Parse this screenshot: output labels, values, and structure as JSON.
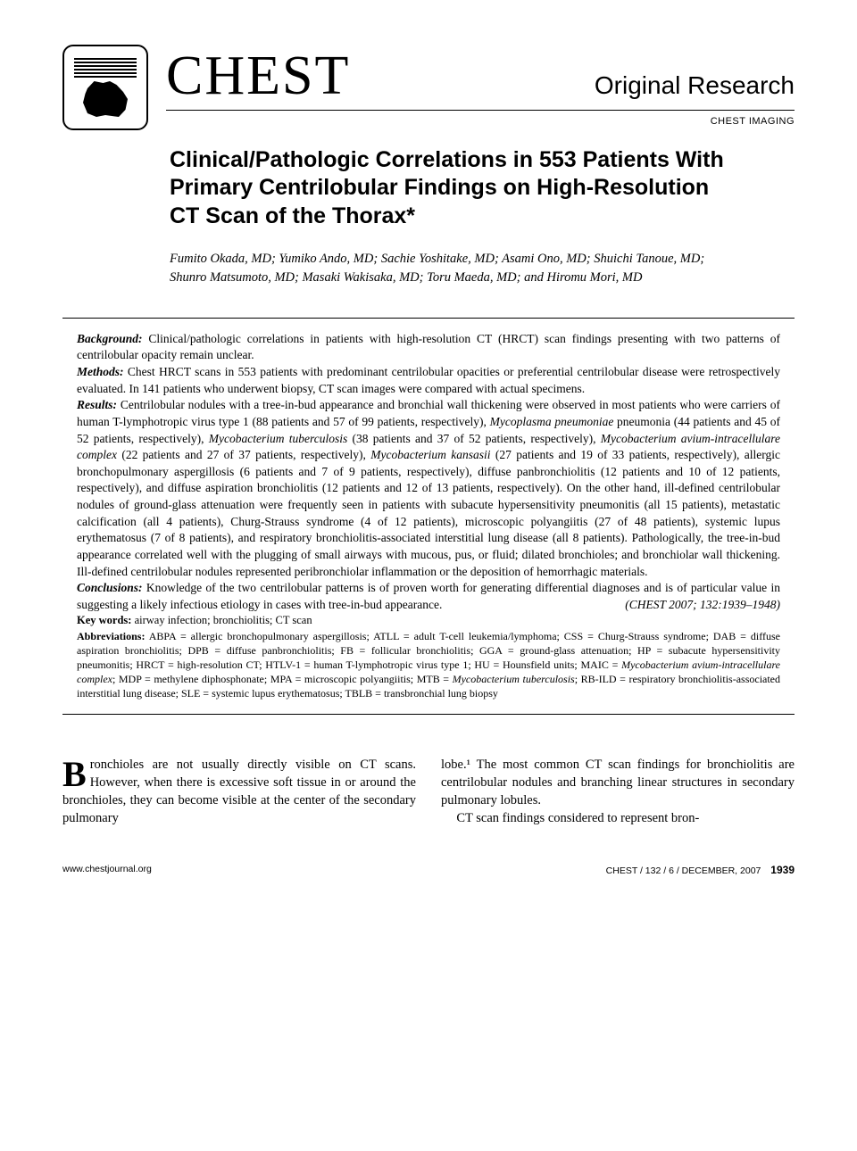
{
  "header": {
    "journal": "CHEST",
    "section": "Original Research",
    "subsection": "CHEST IMAGING"
  },
  "article": {
    "title": "Clinical/Pathologic Correlations in 553 Patients With Primary Centrilobular Findings on High-Resolution CT Scan of the Thorax*",
    "authors": "Fumito Okada, MD; Yumiko Ando, MD; Sachie Yoshitake, MD; Asami Ono, MD; Shuichi Tanoue, MD; Shunro Matsumoto, MD; Masaki Wakisaka, MD; Toru Maeda, MD; and Hiromu Mori, MD"
  },
  "abstract": {
    "background_label": "Background:",
    "background": " Clinical/pathologic correlations in patients with high-resolution CT (HRCT) scan findings presenting with two patterns of centrilobular opacity remain unclear.",
    "methods_label": "Methods:",
    "methods": " Chest HRCT scans in 553 patients with predominant centrilobular opacities or preferential centrilobular disease were retrospectively evaluated. In 141 patients who underwent biopsy, CT scan images were compared with actual specimens.",
    "results_label": "Results:",
    "results_part1": " Centrilobular nodules with a tree-in-bud appearance and bronchial wall thickening were observed in most patients who were carriers of human T-lymphotropic virus type 1 (88 patients and 57 of 99 patients, respectively), ",
    "results_mp": "Mycoplasma pneumoniae",
    "results_part2": " pneumonia (44 patients and 45 of 52 patients, respectively), ",
    "results_mtb": "Mycobacterium tuberculosis",
    "results_part3": " (38 patients and 37 of 52 patients, respectively), ",
    "results_maic": "Mycobacterium avium-intracellulare complex",
    "results_part4": " (22 patients and 27 of 37 patients, respectively), ",
    "results_mk": "Mycobacterium kansasii",
    "results_part5": " (27 patients and 19 of 33 patients, respectively), allergic bronchopulmonary aspergillosis (6 patients and 7 of 9 patients, respectively), diffuse panbronchiolitis (12 patients and 10 of 12 patients, respectively), and diffuse aspiration bronchiolitis (12 patients and 12 of 13 patients, respectively). On the other hand, ill-defined centrilobular nodules of ground-glass attenuation were frequently seen in patients with subacute hypersensitivity pneumonitis (all 15 patients), metastatic calcification (all 4 patients), Churg-Strauss syndrome (4 of 12 patients), microscopic polyangiitis (27 of 48 patients), systemic lupus erythematosus (7 of 8 patients), and respiratory bronchiolitis-associated interstitial lung disease (all 8 patients). Pathologically, the tree-in-bud appearance correlated well with the plugging of small airways with mucous, pus, or fluid; dilated bronchioles; and bronchiolar wall thickening. Ill-defined centrilobular nodules represented peribronchiolar inflammation or the deposition of hemorrhagic materials.",
    "conclusions_label": "Conclusions:",
    "conclusions": " Knowledge of the two centrilobular patterns is of proven worth for generating differential diagnoses and is of particular value in suggesting a likely infectious etiology in cases with tree-in-bud appearance.",
    "citation": "(CHEST 2007; 132:1939–1948)"
  },
  "keywords": {
    "label": "Key words:",
    "text": " airway infection; bronchiolitis; CT scan"
  },
  "abbreviations": {
    "label": "Abbreviations:",
    "text_pre": " ABPA = allergic bronchopulmonary aspergillosis; ATLL = adult T-cell leukemia/lymphoma; CSS = Churg-Strauss syndrome; DAB = diffuse aspiration bronchiolitis; DPB = diffuse panbronchiolitis; FB = follicular bronchiolitis; GGA = ground-glass attenuation; HP = subacute hypersensitivity pneumonitis; HRCT = high-resolution CT; HTLV-1 = human T-lymphotropic virus type 1; HU = Hounsfield units; MAIC = ",
    "maic": "Mycobacterium avium-intracellulare complex",
    "text_mid": "; MDP = methylene diphosphonate; MPA = microscopic polyangiitis; MTB = ",
    "mtb": "Mycobacterium tuberculosis",
    "text_post": "; RB-ILD = respiratory bronchiolitis-associated interstitial lung disease; SLE = systemic lupus erythematosus; TBLB = transbronchial lung biopsy"
  },
  "body": {
    "col1_first": "B",
    "col1": "ronchioles are not usually directly visible on CT scans. However, when there is excessive soft tissue in or around the bronchioles, they can become visible at the center of the secondary pulmonary",
    "col2_p1": "lobe.¹ The most common CT scan findings for bronchiolitis are centrilobular nodules and branching linear structures in secondary pulmonary lobules.",
    "col2_p2": "CT scan findings considered to represent bron-"
  },
  "footer": {
    "url": "www.chestjournal.org",
    "issue": "CHEST / 132 / 6 / DECEMBER, 2007",
    "page": "1939"
  },
  "colors": {
    "text": "#000000",
    "background": "#ffffff",
    "rule": "#000000"
  }
}
